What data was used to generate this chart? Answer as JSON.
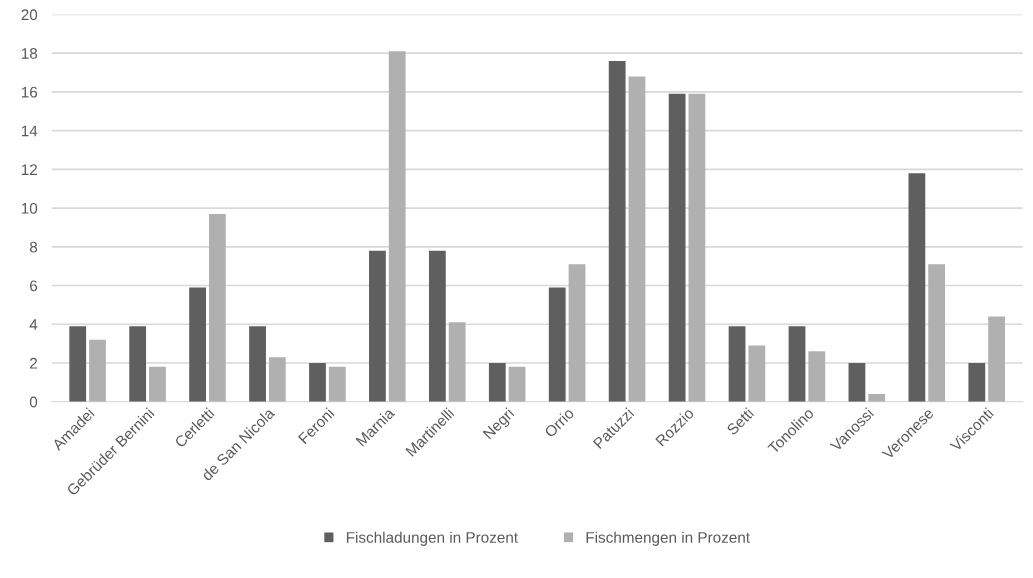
{
  "chart_data": {
    "type": "bar",
    "categories": [
      "Amadei",
      "Gebrüder Bernini",
      "Cerletti",
      "de San Nicola",
      "Feroni",
      "Marnia",
      "Martinelli",
      "Negri",
      "Orrio",
      "Patuzzi",
      "Rozzio",
      "Setti",
      "Tonolino",
      "Vanossi",
      "Veronese",
      "Visconti"
    ],
    "series": [
      {
        "name": "Fischladungen in Prozent",
        "color": "#5f5f5f",
        "values": [
          3.9,
          3.9,
          5.9,
          3.9,
          2.0,
          7.8,
          7.8,
          2.0,
          5.9,
          17.6,
          15.9,
          3.9,
          3.9,
          2.0,
          11.8,
          2.0
        ]
      },
      {
        "name": "Fischmengen in Prozent",
        "color": "#b0b0b0",
        "values": [
          3.2,
          1.8,
          9.7,
          2.3,
          1.8,
          18.1,
          4.1,
          1.8,
          7.1,
          16.8,
          15.9,
          2.9,
          2.6,
          0.4,
          7.1,
          4.4
        ]
      }
    ],
    "ylim": [
      0,
      20
    ],
    "yticks": [
      0,
      2,
      4,
      6,
      8,
      10,
      12,
      14,
      16,
      18,
      20
    ],
    "grid": "y",
    "legend": "bottom"
  }
}
